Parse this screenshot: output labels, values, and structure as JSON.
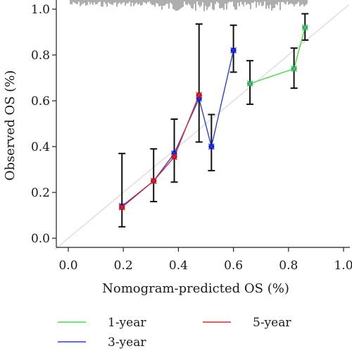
{
  "chart_data": {
    "type": "line",
    "xlabel": "Nomogram-predicted OS (%)",
    "ylabel": "Observed OS (%)",
    "xlim": [
      -0.05,
      1.02
    ],
    "ylim": [
      -0.03,
      1.02
    ],
    "x_ticks": [
      "0.0",
      "0.2",
      "0.4",
      "0.6",
      "0.8",
      "1.0"
    ],
    "y_ticks": [
      "0.0",
      "0.2",
      "0.4",
      "0.6",
      "0.8",
      "1.0"
    ],
    "reference_line": {
      "from": [
        0,
        0
      ],
      "to": [
        1,
        1
      ],
      "color": "#dcdcdc"
    },
    "rug": {
      "position": "top",
      "color": "#333333"
    },
    "legend": {
      "position": "bottom",
      "entries": [
        "1-year",
        "3-year",
        "5-year"
      ]
    },
    "series": [
      {
        "name": "1-year",
        "color": "#3ee03e",
        "marker_color": "#3a8a8a",
        "x": [
          0.66,
          0.82,
          0.86
        ],
        "y": [
          0.675,
          0.74,
          0.92
        ],
        "ci_low": [
          0.585,
          0.655,
          0.865
        ],
        "ci_high": [
          0.775,
          0.83,
          0.98
        ]
      },
      {
        "name": "3-year",
        "color": "#2a3fd8",
        "marker_color": "#1010cc",
        "x": [
          0.195,
          0.31,
          0.385,
          0.475,
          0.52,
          0.6
        ],
        "y": [
          0.14,
          0.25,
          0.37,
          0.61,
          0.4,
          0.82
        ],
        "ci_low": [
          0.05,
          null,
          null,
          null,
          0.295,
          0.725
        ],
        "ci_high": [
          0.37,
          null,
          null,
          null,
          0.54,
          0.93
        ]
      },
      {
        "name": "5-year",
        "color": "#e02a2a",
        "marker_color": "#aa1020",
        "x": [
          0.195,
          0.31,
          0.385,
          0.475
        ],
        "y": [
          0.135,
          0.25,
          0.355,
          0.625
        ],
        "ci_low": [
          null,
          0.16,
          0.245,
          0.42
        ],
        "ci_high": [
          null,
          0.39,
          0.52,
          0.935
        ]
      }
    ]
  }
}
